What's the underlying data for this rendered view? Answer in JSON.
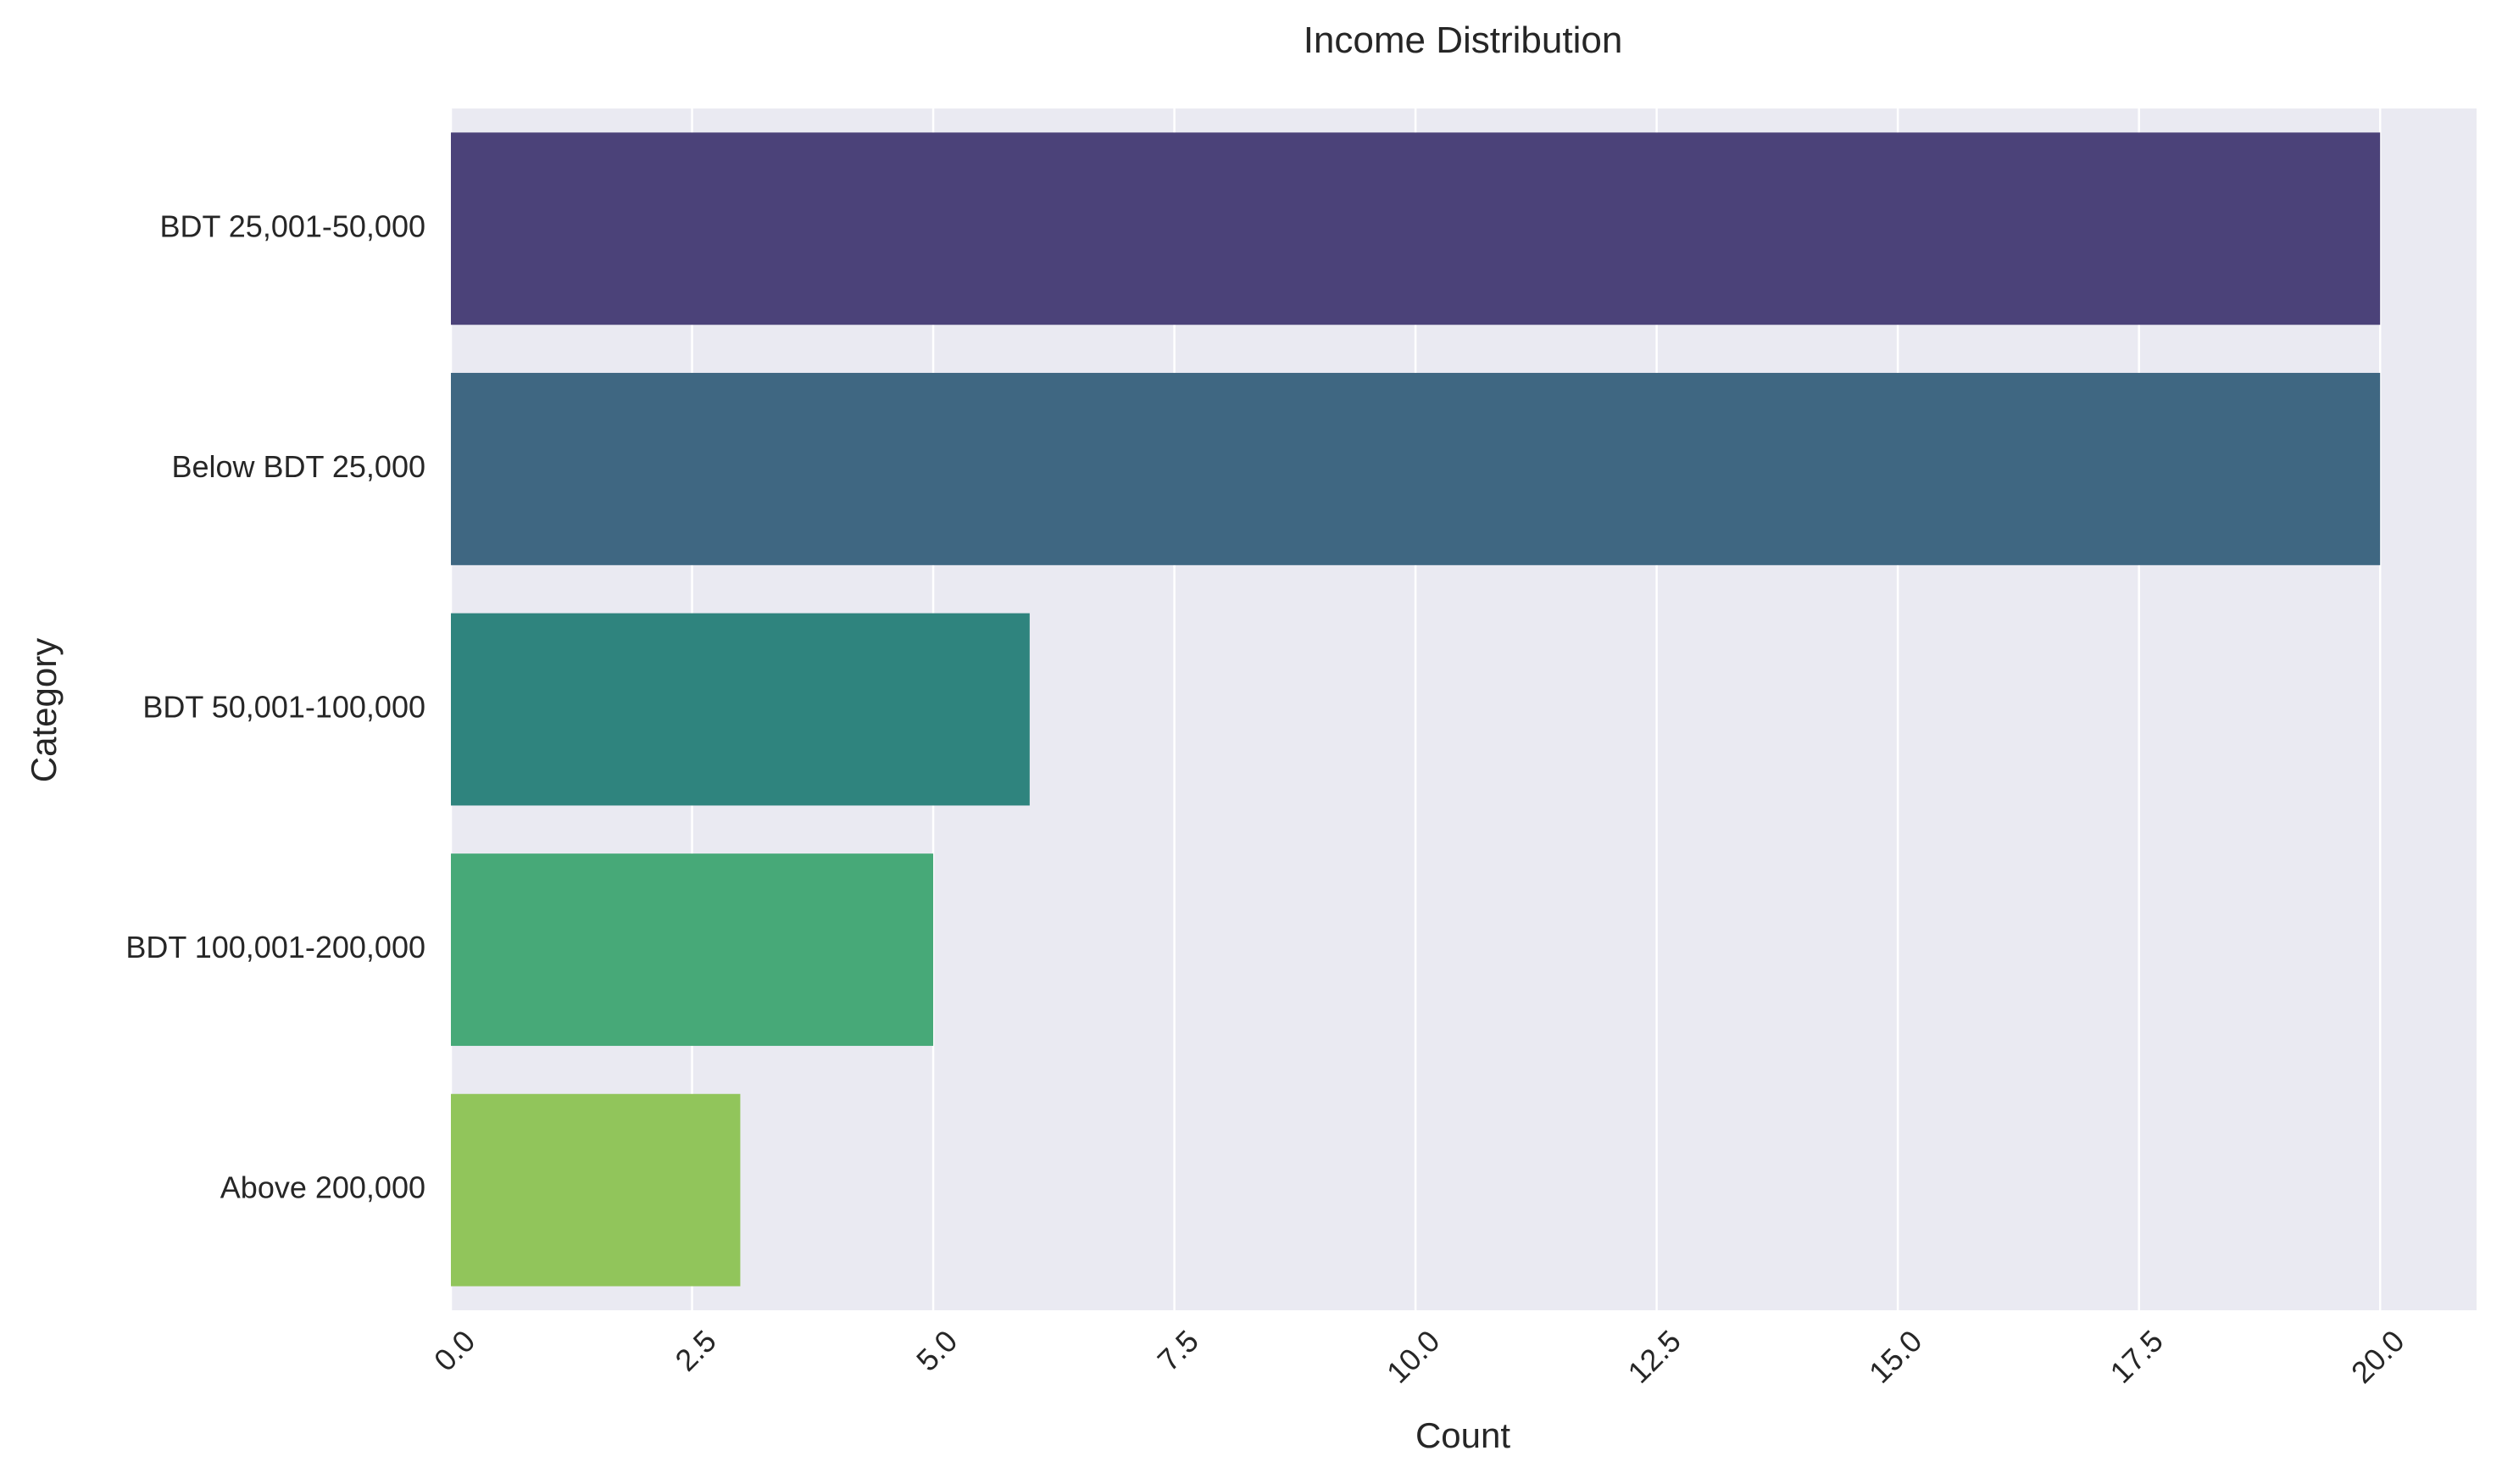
{
  "chart_data": {
    "type": "bar",
    "orientation": "horizontal",
    "title": "Income Distribution",
    "xlabel": "Count",
    "ylabel": "Category",
    "categories": [
      "BDT 25,001-50,000",
      "Below BDT 25,000",
      "BDT 50,001-100,000",
      "BDT 100,001-200,000",
      "Above 200,000"
    ],
    "values": [
      20,
      20,
      6,
      5,
      3
    ],
    "xlim": [
      0,
      21
    ],
    "xticks": [
      "0.0",
      "2.5",
      "5.0",
      "7.5",
      "10.0",
      "12.5",
      "15.0",
      "17.5",
      "20.0"
    ],
    "xtick_values": [
      0,
      2.5,
      5,
      7.5,
      10,
      12.5,
      15,
      17.5,
      20
    ],
    "grid": true,
    "colors": [
      "#4b4279",
      "#3f6782",
      "#2f847e",
      "#47a978",
      "#91c55b"
    ],
    "background": "#eaeaf2"
  }
}
